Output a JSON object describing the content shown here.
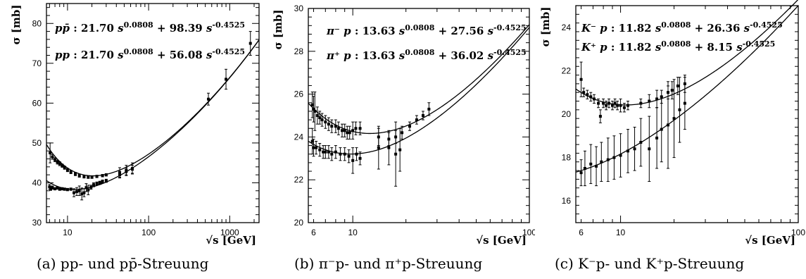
{
  "chart_data": [
    {
      "type": "scatter",
      "xlabel": "√s [GeV]",
      "ylabel": "σ [mb]",
      "xscale": "log",
      "xlim": [
        5.5,
        2300
      ],
      "ylim": [
        30,
        85
      ],
      "xticks": [
        10,
        100,
        1000
      ],
      "yticks": [
        30,
        40,
        50,
        60,
        70,
        80
      ],
      "caption": "(a) pp- und pp̄-Streuung",
      "legend": [
        {
          "label": "pp̄",
          "text": ":  21.70 s^0.0808 + 98.39 s^-0.4525"
        },
        {
          "label": "pp",
          "text": ":  21.70 s^0.0808 + 56.08 s^-0.4525"
        }
      ],
      "fits": [
        {
          "a": 21.7,
          "e": 0.0808,
          "b": 98.39,
          "f": -0.4525
        },
        {
          "a": 21.7,
          "e": 0.0808,
          "b": 56.08,
          "f": -0.4525
        }
      ],
      "series": [
        {
          "x": [
            6.1,
            6.5,
            7.0,
            7.5,
            8.0,
            8.6,
            9.2,
            10.0,
            11.0,
            12.5,
            14.0,
            16.0,
            18.0,
            20.0,
            23.0,
            27.0,
            30.0,
            44.0,
            53.0,
            63.0,
            546.0,
            900.0,
            1800.0
          ],
          "y": [
            47.5,
            46.5,
            45.8,
            45.2,
            44.8,
            44.3,
            43.8,
            43.2,
            42.7,
            42.2,
            41.8,
            41.5,
            41.4,
            41.4,
            41.6,
            41.8,
            42.0,
            42.6,
            43.2,
            43.6,
            61.0,
            66.0,
            75.0
          ],
          "err": [
            2.5,
            0.6,
            0.5,
            0.5,
            0.5,
            0.4,
            0.4,
            0.4,
            0.4,
            0.4,
            0.4,
            0.3,
            0.3,
            0.3,
            0.3,
            0.3,
            0.3,
            1.2,
            1.2,
            1.4,
            1.5,
            2.5,
            3.0
          ]
        },
        {
          "x": [
            6.0,
            6.2,
            6.5,
            7.0,
            7.5,
            8.0,
            8.6,
            9.2,
            10.0,
            11.0,
            12.0,
            13.0,
            14.0,
            15.0,
            16.0,
            17.0,
            18.0,
            19.5,
            21.0,
            23.0,
            25.0,
            27.0,
            30.0,
            44.0,
            53.0,
            63.0
          ],
          "y": [
            39.0,
            38.5,
            38.8,
            38.5,
            38.7,
            38.4,
            38.5,
            38.4,
            38.3,
            38.4,
            37.5,
            37.8,
            38.0,
            37.2,
            37.5,
            38.8,
            38.2,
            38.9,
            39.5,
            39.8,
            40.0,
            40.3,
            40.5,
            42.0,
            42.8,
            43.4
          ],
          "err": [
            0.6,
            0.4,
            0.4,
            0.3,
            0.3,
            0.3,
            0.3,
            0.3,
            0.3,
            0.3,
            1.0,
            1.0,
            1.2,
            1.5,
            1.0,
            1.0,
            1.2,
            0.5,
            0.5,
            0.4,
            0.4,
            0.4,
            0.4,
            0.8,
            1.0,
            1.0
          ]
        }
      ]
    },
    {
      "type": "scatter",
      "xlabel": "√s [GeV]",
      "ylabel": "σ [mb]",
      "xscale": "log",
      "xlim": [
        5.6,
        100
      ],
      "ylim": [
        20,
        30
      ],
      "xticks": [
        6,
        10,
        100
      ],
      "yticks": [
        20,
        22,
        24,
        26,
        28,
        30
      ],
      "caption": "(b) π⁻p- und π⁺p-Streuung",
      "legend": [
        {
          "label": "π⁻ p",
          "text": ":  13.63 s^0.0808 + 27.56 s^-0.4525"
        },
        {
          "label": "π⁺ p",
          "text": ":  13.63 s^0.0808 + 36.02 s^-0.4525"
        }
      ],
      "fits": [
        {
          "a": 13.63,
          "e": 0.0808,
          "b": 27.56,
          "f": -0.4525
        },
        {
          "a": 13.63,
          "e": 0.0808,
          "b": 36.02,
          "f": -0.4525
        }
      ],
      "series": [
        {
          "x": [
            5.9,
            6.0,
            6.1,
            6.3,
            6.5,
            6.7,
            7.0,
            7.3,
            7.6,
            8.0,
            8.3,
            8.7,
            9.0,
            9.3,
            9.6,
            10.0,
            10.4,
            11.0,
            14.0,
            16.0,
            17.5,
            19.0,
            21.0,
            23.0,
            25.0,
            27.0
          ],
          "y": [
            25.5,
            25.3,
            25.2,
            25.0,
            24.9,
            24.8,
            24.7,
            24.6,
            24.5,
            24.5,
            24.4,
            24.3,
            24.3,
            24.2,
            24.2,
            24.3,
            24.4,
            24.4,
            24.0,
            23.9,
            24.0,
            24.2,
            24.5,
            24.8,
            25.0,
            25.3
          ],
          "err": [
            0.6,
            0.6,
            0.9,
            0.4,
            0.3,
            0.3,
            0.3,
            0.3,
            0.3,
            0.3,
            0.3,
            0.3,
            0.3,
            0.3,
            0.3,
            0.4,
            0.3,
            0.3,
            0.4,
            0.3,
            0.3,
            0.3,
            0.2,
            0.2,
            0.2,
            0.3
          ]
        },
        {
          "x": [
            5.9,
            6.0,
            6.2,
            6.5,
            6.8,
            7.0,
            7.3,
            7.6,
            8.0,
            8.5,
            9.0,
            9.5,
            10.0,
            10.5,
            11.0,
            14.0,
            16.0,
            17.5,
            18.5
          ],
          "y": [
            23.8,
            23.5,
            23.5,
            23.4,
            23.3,
            23.3,
            23.3,
            23.2,
            23.3,
            23.2,
            23.2,
            23.1,
            22.9,
            23.2,
            23.0,
            23.5,
            23.5,
            23.2,
            23.4
          ],
          "err": [
            0.6,
            0.4,
            0.3,
            0.3,
            0.3,
            0.3,
            0.3,
            0.3,
            0.3,
            0.3,
            0.3,
            0.3,
            0.6,
            0.3,
            0.3,
            1.0,
            0.8,
            1.5,
            1.0
          ]
        }
      ]
    },
    {
      "type": "scatter",
      "xlabel": "√s [GeV]",
      "ylabel": "σ [mb]",
      "xscale": "log",
      "xlim": [
        5.6,
        100
      ],
      "ylim": [
        15,
        25
      ],
      "xticks": [
        6,
        10,
        100
      ],
      "yticks": [
        16,
        18,
        20,
        22,
        24
      ],
      "caption": "(c) K⁻p- und K⁺p-Streuung",
      "legend": [
        {
          "label": "K⁻ p",
          "text": ":  11.82 s^0.0808 + 26.36 s^-0.4525"
        },
        {
          "label": "K⁺ p",
          "text": ":  11.82 s^0.0808 + 8.15 s^-0.4525"
        }
      ],
      "fits": [
        {
          "a": 11.82,
          "e": 0.0808,
          "b": 26.36,
          "f": -0.4525
        },
        {
          "a": 11.82,
          "e": 0.0808,
          "b": 8.15,
          "f": -0.4525
        }
      ],
      "series": [
        {
          "x": [
            6.0,
            6.2,
            6.5,
            6.8,
            7.1,
            7.5,
            7.7,
            8.0,
            8.3,
            8.6,
            9.0,
            9.3,
            9.6,
            10.0,
            10.5,
            11.0,
            13.0,
            14.5,
            16.0,
            17.0,
            18.5,
            19.5,
            21.0,
            23.0
          ],
          "y": [
            21.6,
            21.0,
            20.9,
            20.8,
            20.7,
            20.5,
            19.9,
            20.5,
            20.4,
            20.5,
            20.4,
            20.5,
            20.4,
            20.4,
            20.3,
            20.4,
            20.5,
            20.6,
            20.7,
            20.8,
            21.0,
            21.1,
            21.3,
            21.4
          ],
          "err": [
            0.8,
            0.2,
            0.2,
            0.2,
            0.2,
            0.2,
            0.3,
            0.2,
            0.2,
            0.2,
            0.2,
            0.2,
            0.2,
            0.3,
            0.2,
            0.2,
            0.2,
            0.3,
            0.4,
            0.3,
            0.3,
            0.4,
            0.4,
            0.4
          ]
        },
        {
          "x": [
            6.0,
            6.3,
            6.8,
            7.3,
            7.8,
            8.5,
            9.2,
            10.0,
            11.0,
            12.0,
            13.0,
            14.5,
            16.0,
            17.0,
            18.5,
            20.0,
            21.5,
            23.0
          ],
          "y": [
            17.3,
            17.5,
            17.7,
            17.6,
            17.8,
            17.9,
            18.0,
            18.1,
            18.3,
            18.4,
            18.7,
            18.4,
            18.9,
            19.3,
            19.5,
            19.8,
            20.2,
            20.5
          ],
          "err": [
            0.6,
            0.8,
            0.9,
            0.9,
            0.9,
            1.0,
            1.0,
            1.0,
            1.0,
            1.0,
            1.1,
            1.5,
            1.4,
            1.5,
            2.0,
            1.8,
            1.5,
            1.2
          ]
        }
      ]
    }
  ]
}
